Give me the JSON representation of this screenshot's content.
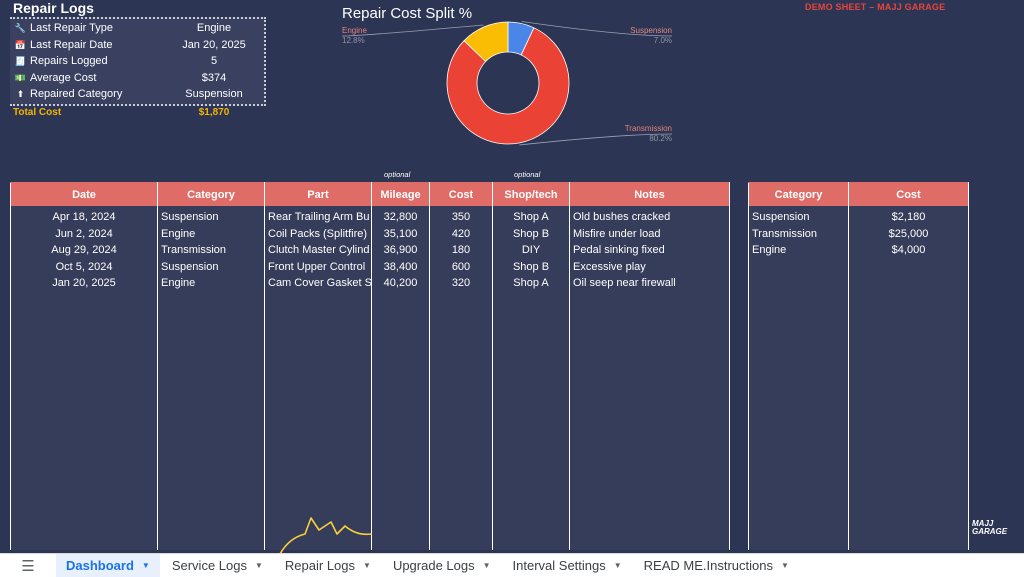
{
  "summary": {
    "title": "Repair Logs",
    "rows": [
      {
        "icon": "wrench-icon",
        "glyph": "🔧",
        "label": "Last Repair Type",
        "value": "Engine"
      },
      {
        "icon": "calendar-icon",
        "glyph": "📅",
        "label": "Last Repair Date",
        "value": "Jan 20, 2025"
      },
      {
        "icon": "receipt-icon",
        "glyph": "🧾",
        "label": "Repairs Logged",
        "value": "5"
      },
      {
        "icon": "money-icon",
        "glyph": "💵",
        "label": "Average Cost",
        "value": "$374"
      },
      {
        "icon": "arrow-icon",
        "glyph": "⬆",
        "label": "Repaired Category",
        "value": "Suspension"
      }
    ],
    "total_label": "Total Cost",
    "total_value": "$1,870"
  },
  "demo_tag": "DEMO SHEET – MAJJ GARAGE",
  "chart_data": {
    "type": "pie",
    "title": "Repair Cost Split %",
    "hole": true,
    "slices": [
      {
        "label": "Suspension",
        "pct_label": "7.0%",
        "value": 7.0,
        "color": "#4a86e8"
      },
      {
        "label": "Transmission",
        "pct_label": "80.2%",
        "value": 80.2,
        "color": "#ea4335"
      },
      {
        "label": "Engine",
        "pct_label": "12.8%",
        "value": 12.8,
        "color": "#fbbc04"
      }
    ]
  },
  "logs_table": {
    "optional_note": "optional",
    "columns": [
      "Date",
      "Category",
      "Part",
      "Mileage",
      "Cost",
      "Shop/tech",
      "Notes"
    ],
    "rows": [
      [
        "Apr 18, 2024",
        "Suspension",
        "Rear Trailing Arm Bu",
        "32,800",
        "350",
        "Shop A",
        "Old bushes cracked"
      ],
      [
        "Jun 2, 2024",
        "Engine",
        "Coil Packs (Splitfire)",
        "35,100",
        "420",
        "Shop B",
        "Misfire under load"
      ],
      [
        "Aug 29, 2024",
        "Transmission",
        "Clutch Master Cylind",
        "36,900",
        "180",
        "DIY",
        "Pedal sinking fixed"
      ],
      [
        "Oct 5, 2024",
        "Suspension",
        "Front Upper Control",
        "38,400",
        "600",
        "Shop B",
        "Excessive play"
      ],
      [
        "Jan 20, 2025",
        "Engine",
        "Cam Cover Gasket S",
        "40,200",
        "320",
        "Shop A",
        "Oil seep near firewall"
      ]
    ]
  },
  "category_table": {
    "columns": [
      "Category",
      "Cost"
    ],
    "rows": [
      [
        "Suspension",
        "$2,180"
      ],
      [
        "Transmission",
        "$25,000"
      ],
      [
        "Engine",
        "$4,000"
      ]
    ]
  },
  "tabs": [
    {
      "label": "Dashboard",
      "active": true
    },
    {
      "label": "Service Logs",
      "active": false
    },
    {
      "label": "Repair Logs",
      "active": false
    },
    {
      "label": "Upgrade Logs",
      "active": false
    },
    {
      "label": "Interval Settings",
      "active": false
    },
    {
      "label": "READ ME.Instructions",
      "active": false
    }
  ],
  "logo": {
    "line1": "MAJJ",
    "line2": "GARAGE"
  },
  "colors": {
    "background": "#2c3553",
    "header": "#e06c68",
    "total": "#f4b400",
    "accent": "#1a73e8"
  }
}
